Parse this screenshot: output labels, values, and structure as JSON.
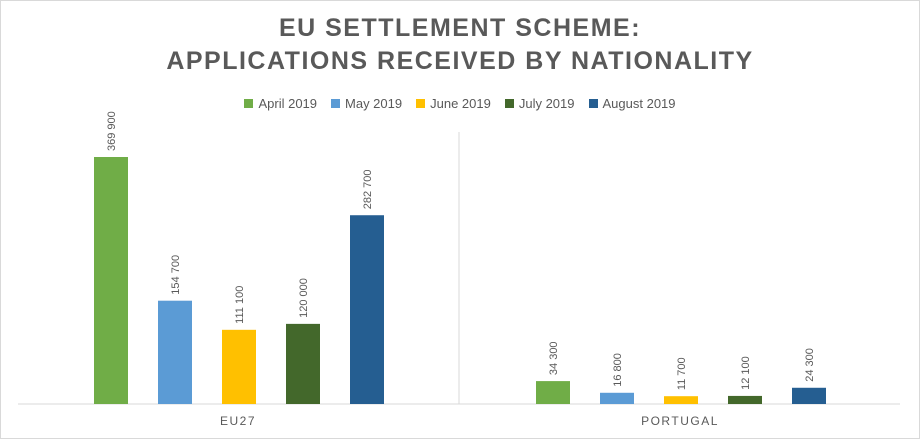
{
  "chart_data": {
    "type": "bar",
    "title_line1": "EU SETTLEMENT SCHEME:",
    "title_line2": "APPLICATIONS RECEIVED BY NATIONALITY",
    "categories": [
      "EU27",
      "PORTUGAL"
    ],
    "series": [
      {
        "name": "April 2019",
        "color": "#70ad47",
        "values": [
          369900,
          34300
        ],
        "labels": [
          "369 900",
          "34 300"
        ]
      },
      {
        "name": "May 2019",
        "color": "#5b9bd5",
        "values": [
          154700,
          16800
        ],
        "labels": [
          "154 700",
          "16 800"
        ]
      },
      {
        "name": "June 2019",
        "color": "#ffc000",
        "values": [
          111100,
          11700
        ],
        "labels": [
          "111 100",
          "11 700"
        ]
      },
      {
        "name": "July 2019",
        "color": "#43682b",
        "values": [
          120000,
          12100
        ],
        "labels": [
          "120 000",
          "12 100"
        ]
      },
      {
        "name": "August 2019",
        "color": "#255e91",
        "values": [
          282700,
          24300
        ],
        "labels": [
          "282 700",
          "24 300"
        ]
      }
    ],
    "legend_position": "top",
    "grid": false
  }
}
